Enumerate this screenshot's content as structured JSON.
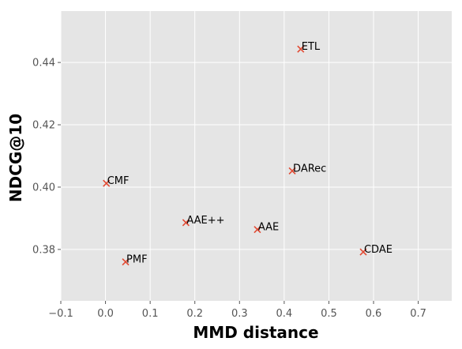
{
  "chart_data": {
    "type": "scatter",
    "title": "",
    "xlabel": "MMD distance",
    "ylabel": "NDCG@10",
    "xlim": [
      -0.1,
      0.775
    ],
    "ylim": [
      0.3635,
      0.4565
    ],
    "xticks": [
      -0.1,
      0.0,
      0.1,
      0.2,
      0.3,
      0.4,
      0.5,
      0.6,
      0.7
    ],
    "xtick_labels": [
      "−0.1",
      "0.0",
      "0.1",
      "0.2",
      "0.3",
      "0.4",
      "0.5",
      "0.6",
      "0.7"
    ],
    "yticks": [
      0.38,
      0.4,
      0.42,
      0.44
    ],
    "ytick_labels": [
      "0.38",
      "0.40",
      "0.42",
      "0.44"
    ],
    "grid": true,
    "marker": "x",
    "marker_color": "#E24A33",
    "background": "#E5E5E5",
    "points": [
      {
        "label": "ETL",
        "x": 0.437,
        "y": 0.4443
      },
      {
        "label": "DARec",
        "x": 0.418,
        "y": 0.4052
      },
      {
        "label": "CMF",
        "x": 0.002,
        "y": 0.4012
      },
      {
        "label": "AAE++",
        "x": 0.18,
        "y": 0.3886
      },
      {
        "label": "AAE",
        "x": 0.34,
        "y": 0.3864
      },
      {
        "label": "CDAE",
        "x": 0.577,
        "y": 0.3792
      },
      {
        "label": "PMF",
        "x": 0.045,
        "y": 0.376
      }
    ]
  }
}
